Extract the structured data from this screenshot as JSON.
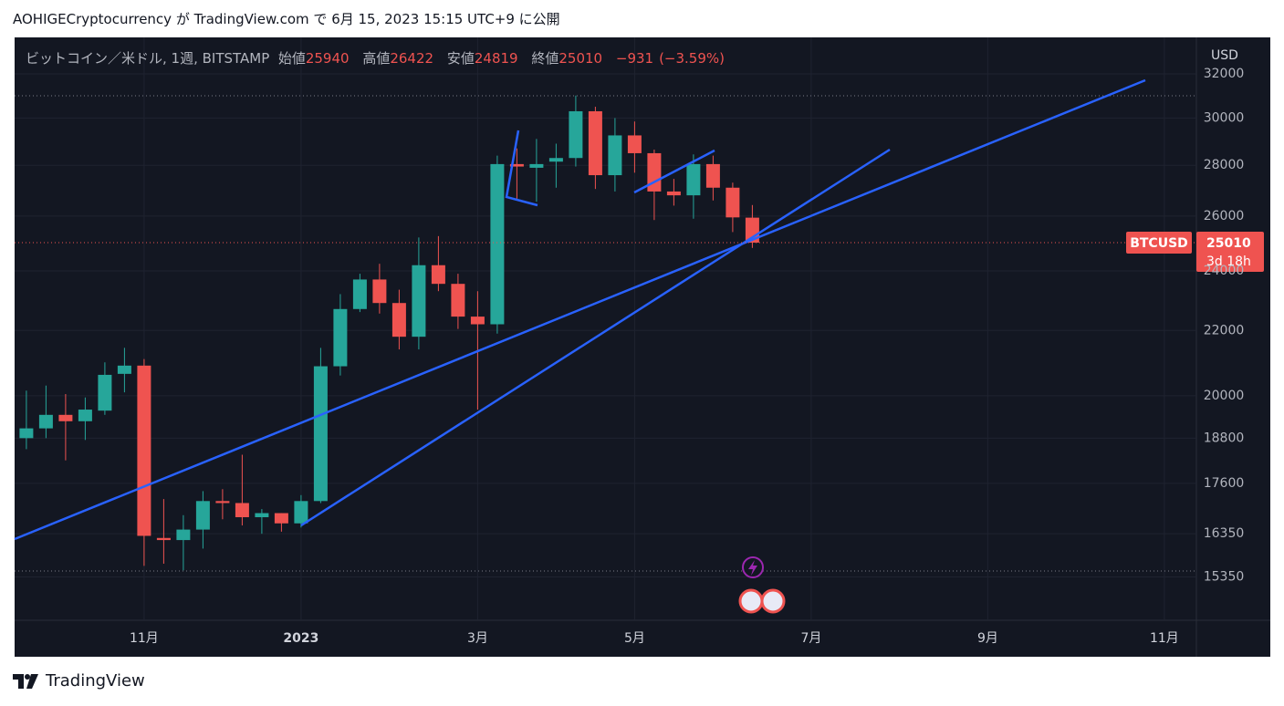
{
  "header": {
    "text": "AOHIGECryptocurrency が TradingView.com で 6月 15, 2023 15:15 UTC+9 に公開"
  },
  "footer": {
    "brand": "TradingView"
  },
  "chart_data": {
    "type": "candlestick",
    "legend": {
      "title": "ビットコイン／米ドル, 1週, BITSTAMP",
      "open_label": "始値",
      "high_label": "高値",
      "low_label": "安値",
      "close_label": "終値",
      "change": {
        "value": -931,
        "label": "−931"
      },
      "change_pct": {
        "value": -3.59,
        "label": "(−3.59%)"
      }
    },
    "currency": "USD",
    "symbol_tag": "BTCUSD",
    "countdown": "3d 18h",
    "log_scale": true,
    "grid": true,
    "up_color": "#26a69a",
    "down_color": "#ef5350",
    "categories": [
      null,
      null,
      null,
      null,
      null,
      null,
      "11月",
      null,
      null,
      null,
      null,
      null,
      null,
      null,
      "2023",
      null,
      null,
      null,
      null,
      null,
      null,
      null,
      null,
      "3月",
      null,
      null,
      null,
      null,
      null,
      null,
      null,
      "5月",
      null,
      null,
      null,
      null,
      null,
      null,
      null,
      null,
      "7月",
      null,
      null,
      null,
      null,
      null,
      null,
      null,
      null,
      "9月",
      null,
      null,
      null,
      null,
      null,
      null,
      null,
      null,
      "11月",
      null
    ],
    "open": [
      18800,
      19070,
      19450,
      19270,
      19570,
      20650,
      20900,
      16250,
      16200,
      16450,
      17150,
      17100,
      16750,
      16850,
      16600,
      17150,
      20880,
      22700,
      23700,
      22900,
      21800,
      24200,
      23550,
      22450,
      22200,
      28050,
      27900,
      28150,
      28300,
      30300,
      27600,
      29250,
      28500,
      26950,
      26800,
      28050,
      27100,
      25940,
      null,
      null,
      null,
      null,
      null,
      null,
      null,
      null,
      null,
      null,
      null,
      null,
      null,
      null,
      null,
      null,
      null,
      null,
      null,
      null,
      null,
      null
    ],
    "high": [
      20150,
      20300,
      20050,
      19950,
      21000,
      21450,
      21100,
      17200,
      16800,
      17400,
      17450,
      18350,
      16950,
      16850,
      17300,
      21450,
      23200,
      23900,
      24250,
      23350,
      25200,
      25250,
      23900,
      23300,
      28400,
      28700,
      29100,
      28900,
      31000,
      30500,
      30000,
      29850,
      28650,
      27450,
      28450,
      28400,
      27300,
      26422,
      null,
      null,
      null,
      null,
      null,
      null,
      null,
      null,
      null,
      null,
      null,
      null,
      null,
      null,
      null,
      null,
      null,
      null,
      null,
      null,
      null,
      null
    ],
    "low": [
      18500,
      18800,
      18200,
      18750,
      19450,
      20100,
      15600,
      15650,
      15500,
      16000,
      16700,
      16550,
      16350,
      16400,
      16500,
      17100,
      20600,
      22600,
      22550,
      21400,
      21400,
      23300,
      22050,
      19600,
      21900,
      26600,
      26550,
      27100,
      27950,
      27050,
      26950,
      27700,
      25850,
      26400,
      25900,
      26600,
      25400,
      24819,
      null,
      null,
      null,
      null,
      null,
      null,
      null,
      null,
      null,
      null,
      null,
      null,
      null,
      null,
      null,
      null,
      null,
      null,
      null,
      null,
      null,
      null
    ],
    "close": [
      19070,
      19450,
      19270,
      19600,
      20620,
      20900,
      16300,
      16200,
      16450,
      17150,
      17100,
      16750,
      16850,
      16600,
      17150,
      20880,
      22700,
      23700,
      22900,
      21800,
      24200,
      23550,
      22450,
      22200,
      28050,
      27950,
      28050,
      28300,
      30300,
      27600,
      29250,
      28500,
      26950,
      26800,
      28050,
      27100,
      25950,
      25010,
      null,
      null,
      null,
      null,
      null,
      null,
      null,
      null,
      null,
      null,
      null,
      null,
      null,
      null,
      null,
      null,
      null,
      null,
      null,
      null,
      null,
      null
    ],
    "ylim": [
      14410,
      33750
    ],
    "yticks": [
      15350,
      16350,
      17600,
      18800,
      20000,
      22000,
      24000,
      26000,
      28000,
      30000,
      32000
    ]
  }
}
